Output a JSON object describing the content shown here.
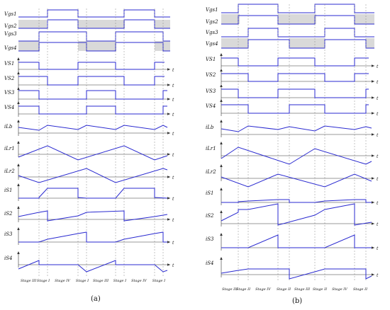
{
  "panels": [
    {
      "id": "a",
      "caption": "(a)",
      "gate_labels": [
        "Vgs1",
        "Vgs2",
        "Vgs3",
        "Vgs4"
      ],
      "trace_labels": [
        "VS1",
        "VS2",
        "VS3",
        "VS4",
        "iLb",
        "iLr1",
        "iLr2",
        "iS1",
        "iS2",
        "iS3",
        "iS4"
      ],
      "time_label": "t",
      "stages": [
        "Stage III",
        "Stage I",
        "Stage IV",
        "Stage I",
        "Stage III",
        "Stage I",
        "Stage IV",
        "Stage I"
      ]
    },
    {
      "id": "b",
      "caption": "(b)",
      "gate_labels": [
        "Vgs1",
        "Vgs2",
        "Vgs3",
        "Vgs4"
      ],
      "trace_labels": [
        "VS1",
        "VS2",
        "VS3",
        "VS4",
        "iLb",
        "iLr1",
        "iLr2",
        "iS1",
        "iS2",
        "iS3",
        "iS4"
      ],
      "time_label": "t",
      "stages": [
        "Stage III",
        "Stage II",
        "Stage IV",
        "Stage II",
        "Stage III",
        "Stage II",
        "Stage IV",
        "Stage II"
      ]
    }
  ],
  "colors": {
    "trace": "#2a2ad0",
    "shade": "#d9d9d9",
    "axis": "#333333",
    "guide": "#888888"
  }
}
